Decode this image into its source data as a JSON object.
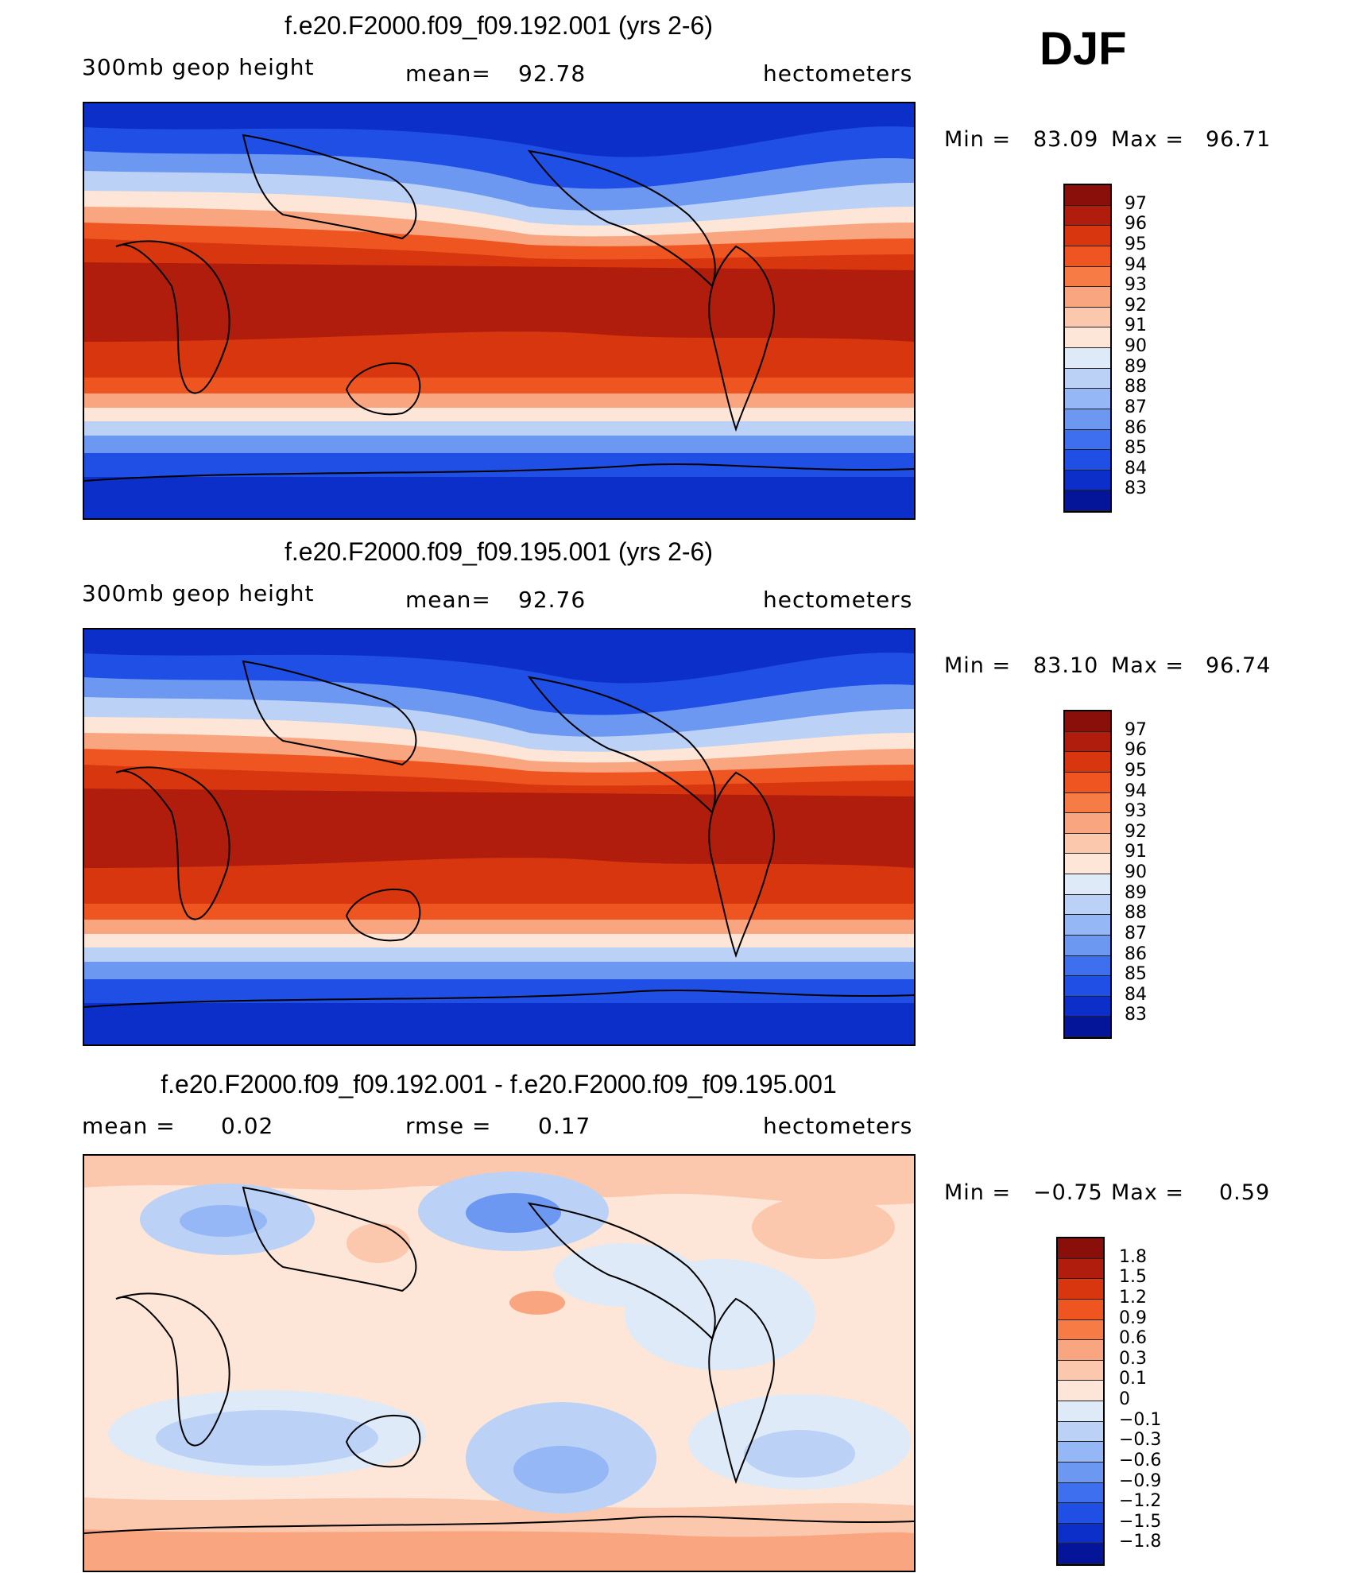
{
  "season": "DJF",
  "panels": [
    {
      "title": "f.e20.F2000.f09_f09.192.001 (yrs 2-6)",
      "left_label": "300mb geop height",
      "stat_label": "mean=",
      "stat_value": "92.78",
      "units": "hectometers",
      "min_label": "Min =",
      "min_value": "83.09",
      "max_label": "Max =",
      "max_value": "96.71",
      "levels": [
        "97",
        "96",
        "95",
        "94",
        "93",
        "92",
        "91",
        "90",
        "89",
        "88",
        "87",
        "86",
        "85",
        "84",
        "83"
      ],
      "colors": [
        "#8a0f0b",
        "#b11d0d",
        "#d8360f",
        "#ef5520",
        "#f67b45",
        "#f9a680",
        "#fcc8ad",
        "#fde6d7",
        "#deeaf8",
        "#bbd2f6",
        "#96b7f5",
        "#6d98f2",
        "#3e6fee",
        "#1f4fe5",
        "#0b2fc8",
        "#05159a"
      ]
    },
    {
      "title": "f.e20.F2000.f09_f09.195.001 (yrs 2-6)",
      "left_label": "300mb geop height",
      "stat_label": "mean=",
      "stat_value": "92.76",
      "units": "hectometers",
      "min_label": "Min =",
      "min_value": "83.10",
      "max_label": "Max =",
      "max_value": "96.74",
      "levels": [
        "97",
        "96",
        "95",
        "94",
        "93",
        "92",
        "91",
        "90",
        "89",
        "88",
        "87",
        "86",
        "85",
        "84",
        "83"
      ],
      "colors": [
        "#8a0f0b",
        "#b11d0d",
        "#d8360f",
        "#ef5520",
        "#f67b45",
        "#f9a680",
        "#fcc8ad",
        "#fde6d7",
        "#deeaf8",
        "#bbd2f6",
        "#96b7f5",
        "#6d98f2",
        "#3e6fee",
        "#1f4fe5",
        "#0b2fc8",
        "#05159a"
      ]
    },
    {
      "title": "f.e20.F2000.f09_f09.192.001 - f.e20.F2000.f09_f09.195.001",
      "left_label": "mean =",
      "left_value": "0.02",
      "stat_label": "rmse =",
      "stat_value": "0.17",
      "units": "hectometers",
      "min_label": "Min =",
      "min_value": "−0.75",
      "max_label": "Max =",
      "max_value": "0.59",
      "levels": [
        "1.8",
        "1.5",
        "1.2",
        "0.9",
        "0.6",
        "0.3",
        "0.1",
        "0",
        "−0.1",
        "−0.3",
        "−0.6",
        "−0.9",
        "−1.2",
        "−1.5",
        "−1.8"
      ],
      "colors": [
        "#8a0f0b",
        "#b11d0d",
        "#d8360f",
        "#ef5520",
        "#f67b45",
        "#f9a680",
        "#fcc8ad",
        "#fde6d7",
        "#deeaf8",
        "#bbd2f6",
        "#96b7f5",
        "#6d98f2",
        "#3e6fee",
        "#1f4fe5",
        "#0b2fc8",
        "#05159a"
      ]
    }
  ]
}
